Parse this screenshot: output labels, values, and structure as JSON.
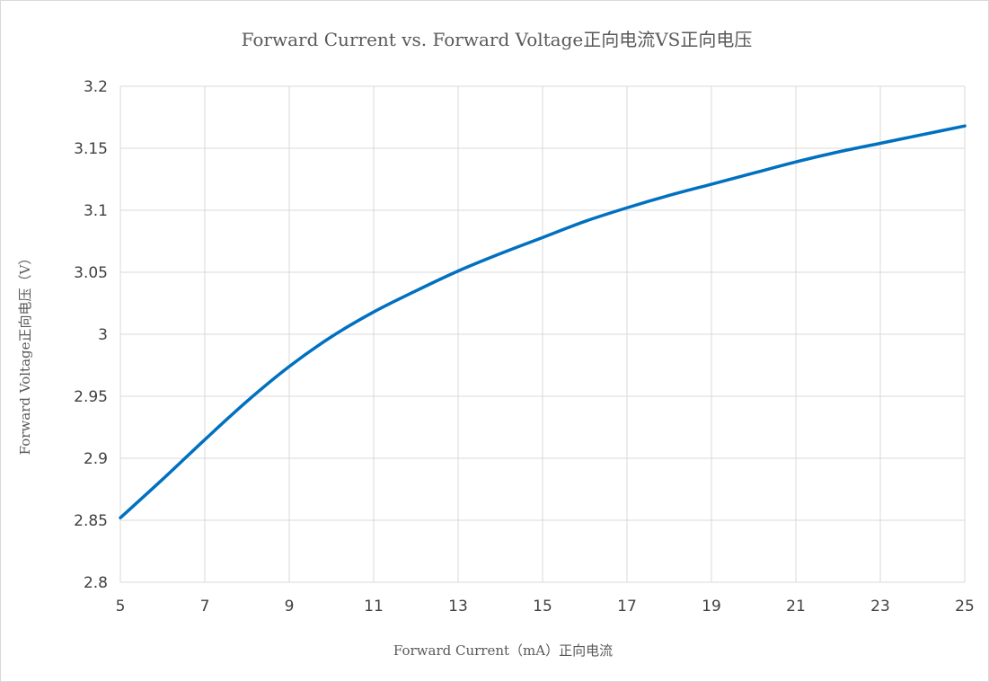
{
  "chart_data": {
    "type": "line",
    "title": "Forward Current vs. Forward Voltage正向电流VS正向电压",
    "xlabel": "Forward Current（mA）正向电流",
    "ylabel": "Forward Voltage正向电压（V）",
    "xlim": [
      5,
      25
    ],
    "ylim": [
      2.8,
      3.2
    ],
    "x_ticks": [
      "5",
      "7",
      "9",
      "11",
      "13",
      "15",
      "17",
      "19",
      "21",
      "23",
      "25"
    ],
    "y_ticks": [
      "2.8",
      "2.85",
      "2.9",
      "2.95",
      "3",
      "3.05",
      "3.1",
      "3.15",
      "3.2"
    ],
    "x_tick_values": [
      5,
      7,
      9,
      11,
      13,
      15,
      17,
      19,
      21,
      23,
      25
    ],
    "y_tick_values": [
      2.8,
      2.85,
      2.9,
      2.95,
      3.0,
      3.05,
      3.1,
      3.15,
      3.2
    ],
    "grid": true,
    "legend": "none",
    "series": [
      {
        "color": "#0070c0",
        "x": [
          5,
          6,
          7,
          8,
          9,
          10,
          11,
          12,
          13,
          14,
          15,
          16,
          17,
          18,
          19,
          20,
          21,
          22,
          23,
          24,
          25
        ],
        "y": [
          2.852,
          2.883,
          2.915,
          2.946,
          2.974,
          2.998,
          3.018,
          3.035,
          3.051,
          3.065,
          3.078,
          3.091,
          3.102,
          3.112,
          3.121,
          3.13,
          3.139,
          3.147,
          3.154,
          3.161,
          3.168
        ]
      }
    ]
  }
}
